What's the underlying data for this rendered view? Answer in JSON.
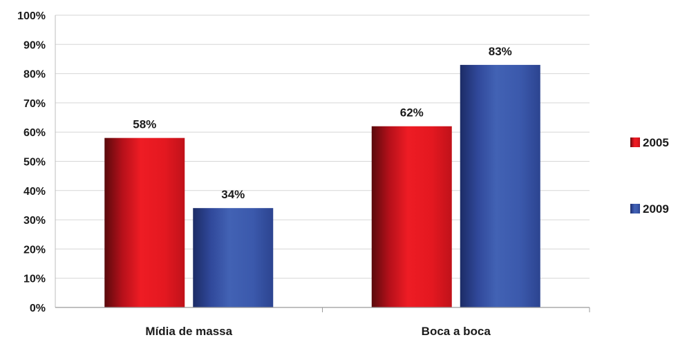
{
  "chart_data": {
    "type": "bar",
    "categories": [
      "Mídia de massa",
      "Boca a boca"
    ],
    "series": [
      {
        "name": "2005",
        "values": [
          58,
          62
        ],
        "labels": [
          "58%",
          "62%"
        ],
        "color": "#e0141e"
      },
      {
        "name": "2009",
        "values": [
          34,
          83
        ],
        "labels": [
          "34%",
          "83%"
        ],
        "color": "#3a56a8"
      }
    ],
    "ylim": [
      0,
      100
    ],
    "yticks": [
      "0%",
      "10%",
      "20%",
      "30%",
      "40%",
      "50%",
      "60%",
      "70%",
      "80%",
      "90%",
      "100%"
    ],
    "grid": true,
    "legend": "right"
  }
}
